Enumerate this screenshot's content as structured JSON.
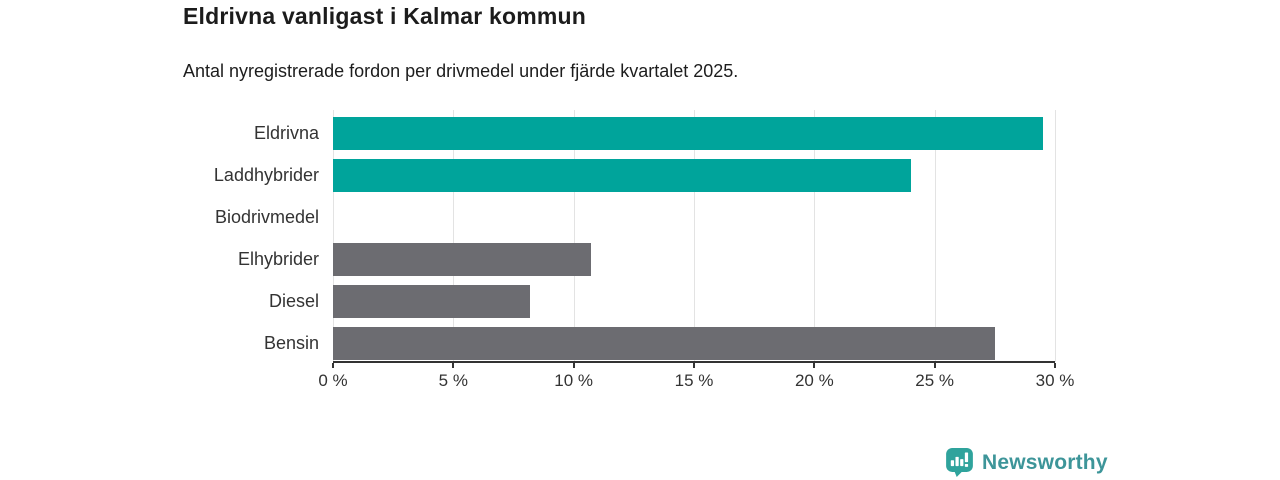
{
  "header": {
    "title": "Eldrivna vanligast i Kalmar kommun",
    "subtitle": "Antal nyregistrerade fordon per drivmedel under fjärde kvartalet 2025."
  },
  "chart_data": {
    "type": "bar",
    "orientation": "horizontal",
    "title": "Eldrivna vanligast i Kalmar kommun",
    "subtitle": "Antal nyregistrerade fordon per drivmedel under fjärde kvartalet 2025.",
    "categories": [
      "Eldrivna",
      "Laddhybrider",
      "Biodrivmedel",
      "Elhybrider",
      "Diesel",
      "Bensin"
    ],
    "values": [
      29.5,
      24.0,
      0,
      10.7,
      8.2,
      27.5
    ],
    "unit": "%",
    "xlim": [
      0,
      30
    ],
    "xticks": [
      0,
      5,
      10,
      15,
      20,
      25,
      30
    ],
    "xtick_labels": [
      "0 %",
      "5 %",
      "10 %",
      "15 %",
      "20 %",
      "25 %",
      "30 %"
    ],
    "grid": true,
    "legend": "none",
    "bar_colors": [
      "#00a49b",
      "#00a49b",
      "#6c6c71",
      "#6c6c71",
      "#6c6c71",
      "#6c6c71"
    ],
    "highlight_color": "#00a49b",
    "default_color": "#6c6c71"
  },
  "branding": {
    "name": "Newsworthy",
    "logo_icon": "newsworthy-bar-chart-bubble-icon",
    "icon_color": "#2fa39c",
    "text_color": "#3d9599"
  }
}
